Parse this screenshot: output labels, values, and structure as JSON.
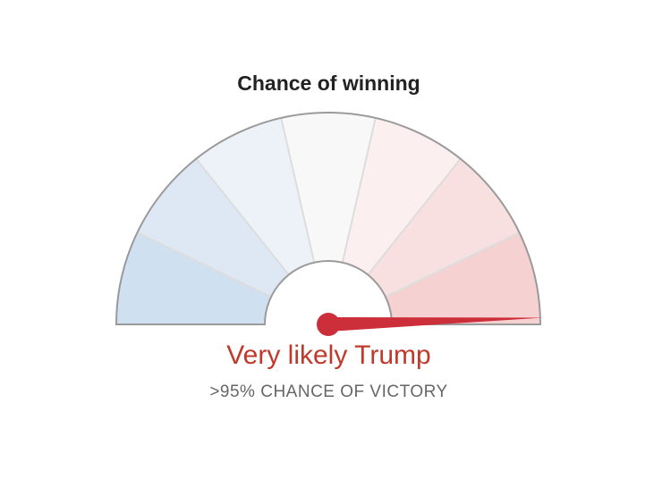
{
  "chart_data": {
    "type": "gauge",
    "title": "Chance of winning",
    "needle_value": 0.99,
    "segments": [
      {
        "color": "#cfe0f1"
      },
      {
        "color": "#dde8f4"
      },
      {
        "color": "#edf2f9"
      },
      {
        "color": "#f8f8f8"
      },
      {
        "color": "#fcefef"
      },
      {
        "color": "#f8e0e0"
      },
      {
        "color": "#f5d1d1"
      }
    ],
    "outcome_label": "Very likely Trump",
    "probability_label": ">95% CHANCE OF VICTORY"
  },
  "colors": {
    "needle": "#cc2f3a",
    "outcome_text": "#c0392b",
    "gauge_border": "#9a9a9a",
    "divider": "#dddddd"
  }
}
